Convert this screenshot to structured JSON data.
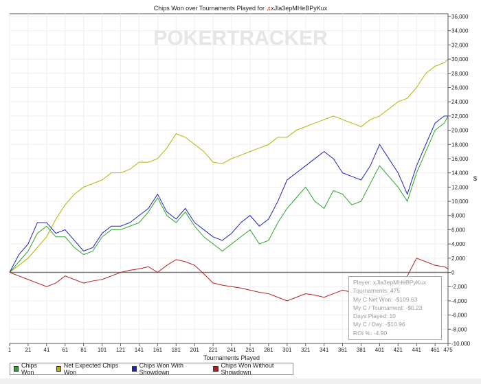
{
  "chart_data": {
    "type": "line",
    "title": "Chips Won over Tournaments Played for",
    "player": "xJla3epMHeBPyKux",
    "xlabel": "Tournaments Played",
    "ylabel": "$",
    "xlim": [
      1,
      475
    ],
    "ylim": [
      -10000,
      36000
    ],
    "xticks": [
      1,
      21,
      41,
      61,
      81,
      101,
      121,
      141,
      161,
      181,
      201,
      221,
      241,
      261,
      281,
      301,
      321,
      341,
      361,
      381,
      401,
      421,
      441,
      461,
      475
    ],
    "yticks": [
      -10000,
      -8000,
      -6000,
      -4000,
      -2000,
      0,
      2000,
      4000,
      6000,
      8000,
      10000,
      12000,
      14000,
      16000,
      18000,
      20000,
      22000,
      24000,
      26000,
      28000,
      30000,
      32000,
      34000,
      36000
    ],
    "x": [
      1,
      11,
      21,
      31,
      41,
      51,
      61,
      71,
      81,
      91,
      101,
      111,
      121,
      131,
      141,
      151,
      161,
      171,
      181,
      191,
      201,
      211,
      221,
      231,
      241,
      251,
      261,
      271,
      281,
      291,
      301,
      311,
      321,
      331,
      341,
      351,
      361,
      371,
      381,
      391,
      401,
      411,
      421,
      431,
      441,
      451,
      461,
      471,
      475
    ],
    "series": [
      {
        "name": "Chips Won",
        "color": "#2aa52a",
        "values": [
          0,
          1500,
          3000,
          5500,
          6500,
          5000,
          5000,
          3500,
          2500,
          3000,
          5000,
          6000,
          6000,
          6500,
          7000,
          8500,
          10500,
          8000,
          7000,
          8500,
          6500,
          5000,
          4000,
          3000,
          4000,
          5000,
          6000,
          4000,
          4500,
          7000,
          9000,
          10500,
          12000,
          10000,
          9000,
          11500,
          11000,
          9500,
          10000,
          12500,
          15000,
          13500,
          12000,
          10000,
          14000,
          17000,
          20000,
          21000,
          22000
        ]
      },
      {
        "name": "Net Expected Chips Won",
        "color": "#b4b400",
        "values": [
          0,
          1000,
          2000,
          3500,
          5000,
          7500,
          9500,
          11000,
          12000,
          12500,
          13000,
          14000,
          14000,
          14500,
          15500,
          15500,
          16000,
          17500,
          19500,
          19000,
          18000,
          17000,
          15500,
          15300,
          16000,
          16500,
          17000,
          17500,
          18000,
          19000,
          19000,
          20000,
          20500,
          21000,
          21500,
          22000,
          21500,
          21000,
          20500,
          21500,
          22000,
          23000,
          24000,
          24500,
          26000,
          28000,
          29000,
          29500,
          30000
        ]
      },
      {
        "name": "Chips Won With Showdown",
        "color": "#2020c0",
        "values": [
          0,
          2500,
          4000,
          7000,
          7000,
          5500,
          6000,
          4500,
          3000,
          3500,
          5500,
          6500,
          6500,
          7000,
          8000,
          9000,
          11000,
          8500,
          7500,
          9000,
          7000,
          6000,
          5000,
          4500,
          5500,
          7000,
          8000,
          6500,
          7500,
          10000,
          13000,
          14000,
          15000,
          16000,
          17000,
          16000,
          14000,
          13500,
          13000,
          15000,
          18000,
          16000,
          14000,
          11000,
          15000,
          18000,
          21000,
          22000,
          22000
        ]
      },
      {
        "name": "Chips Won Without Showdown",
        "color": "#b02020",
        "values": [
          0,
          -500,
          -1000,
          -1500,
          -2000,
          -1500,
          -500,
          -1000,
          -1500,
          -1200,
          -1000,
          -500,
          0,
          300,
          500,
          800,
          0,
          1000,
          1800,
          1500,
          1000,
          -200,
          -1500,
          -1800,
          -2000,
          -2200,
          -2500,
          -2800,
          -3000,
          -3500,
          -4000,
          -3500,
          -3000,
          -3200,
          -3500,
          -3000,
          -2500,
          -2800,
          -3000,
          -3200,
          -3500,
          -3000,
          -2000,
          -500,
          2000,
          1500,
          1000,
          800,
          500
        ]
      }
    ]
  },
  "watermark": "POKERTRACKER",
  "tooltip": [
    "Player: xJla3epMHeBPyKux",
    "Tournaments: 475",
    "My C Net Won: -$109.63",
    "My C / Tournament: -$0.23",
    "Days Played: 10",
    "My C / Day: -$10.96",
    "ROI %: -4.90"
  ]
}
